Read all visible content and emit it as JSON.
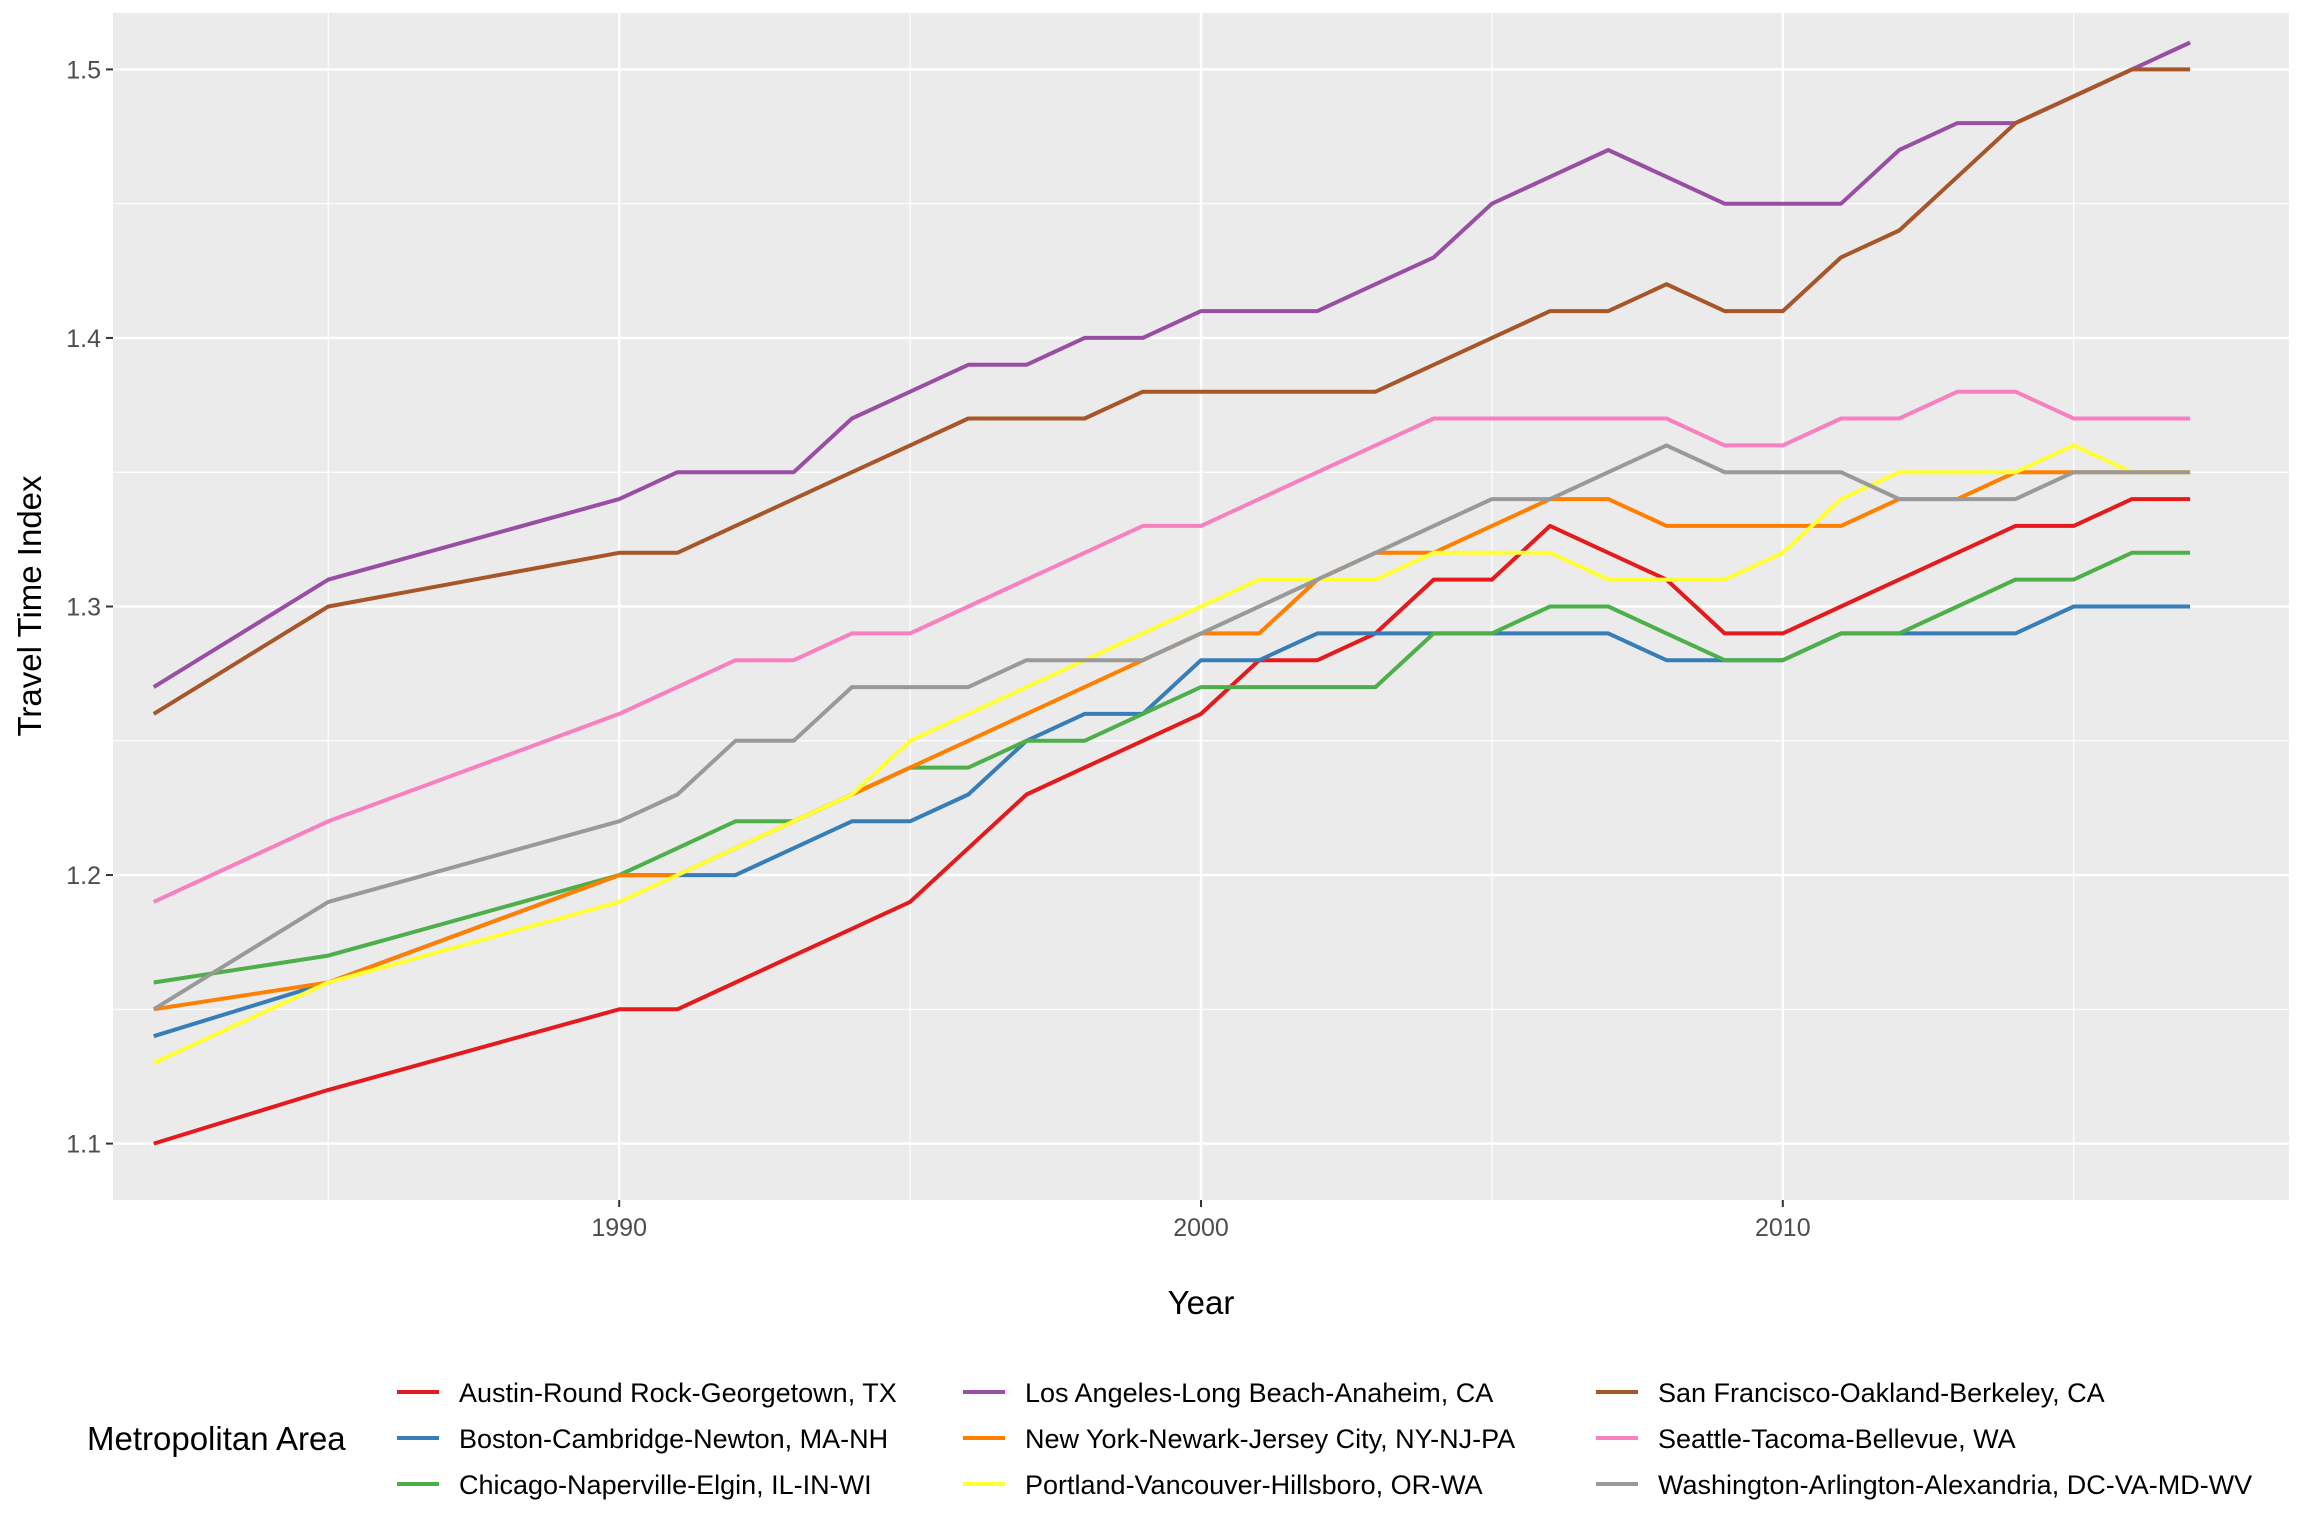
{
  "chart_data": {
    "type": "line",
    "xlabel": "Year",
    "ylabel": "Travel Time Index",
    "xlim": [
      1981.3,
      2018.7
    ],
    "ylim": [
      1.079,
      1.521
    ],
    "x_ticks": [
      1990,
      2000,
      2010
    ],
    "y_ticks": [
      1.1,
      1.2,
      1.3,
      1.4,
      1.5
    ],
    "y_tick_labels": [
      "1.1",
      "1.2",
      "1.3",
      "1.4",
      "1.5"
    ],
    "grid": true,
    "legend": {
      "title": "Metropolitan Area",
      "position": "bottom"
    },
    "x": [
      1982,
      1985,
      1990,
      1991,
      1992,
      1993,
      1994,
      1995,
      1996,
      1997,
      1998,
      1999,
      2000,
      2001,
      2002,
      2003,
      2004,
      2005,
      2006,
      2007,
      2008,
      2009,
      2010,
      2011,
      2012,
      2013,
      2014,
      2015,
      2016,
      2017
    ],
    "series": [
      {
        "name": "Austin-Round Rock-Georgetown, TX",
        "color": "#E41A1C",
        "values": [
          1.1,
          1.12,
          1.15,
          1.15,
          1.16,
          1.17,
          1.18,
          1.19,
          1.21,
          1.23,
          1.24,
          1.25,
          1.26,
          1.28,
          1.28,
          1.29,
          1.31,
          1.31,
          1.33,
          1.32,
          1.31,
          1.29,
          1.29,
          1.3,
          1.31,
          1.32,
          1.33,
          1.33,
          1.34,
          1.34
        ]
      },
      {
        "name": "Boston-Cambridge-Newton, MA-NH",
        "color": "#377EB8",
        "values": [
          1.14,
          1.16,
          1.2,
          1.2,
          1.2,
          1.21,
          1.22,
          1.22,
          1.23,
          1.25,
          1.26,
          1.26,
          1.28,
          1.28,
          1.29,
          1.29,
          1.29,
          1.29,
          1.29,
          1.29,
          1.28,
          1.28,
          1.28,
          1.29,
          1.29,
          1.29,
          1.29,
          1.3,
          1.3,
          1.3
        ]
      },
      {
        "name": "Chicago-Naperville-Elgin, IL-IN-WI",
        "color": "#4DAF4A",
        "values": [
          1.16,
          1.17,
          1.2,
          1.21,
          1.22,
          1.22,
          1.23,
          1.24,
          1.24,
          1.25,
          1.25,
          1.26,
          1.27,
          1.27,
          1.27,
          1.27,
          1.29,
          1.29,
          1.3,
          1.3,
          1.29,
          1.28,
          1.28,
          1.29,
          1.29,
          1.3,
          1.31,
          1.31,
          1.32,
          1.32
        ]
      },
      {
        "name": "Los Angeles-Long Beach-Anaheim, CA",
        "color": "#984EA3",
        "values": [
          1.27,
          1.31,
          1.34,
          1.35,
          1.35,
          1.35,
          1.37,
          1.38,
          1.39,
          1.39,
          1.4,
          1.4,
          1.41,
          1.41,
          1.41,
          1.42,
          1.43,
          1.45,
          1.46,
          1.47,
          1.46,
          1.45,
          1.45,
          1.45,
          1.47,
          1.48,
          1.48,
          1.49,
          1.5,
          1.51
        ]
      },
      {
        "name": "New York-Newark-Jersey City, NY-NJ-PA",
        "color": "#FF7F00",
        "values": [
          1.15,
          1.16,
          1.2,
          1.2,
          1.21,
          1.22,
          1.23,
          1.24,
          1.25,
          1.26,
          1.27,
          1.28,
          1.29,
          1.29,
          1.31,
          1.32,
          1.32,
          1.33,
          1.34,
          1.34,
          1.33,
          1.33,
          1.33,
          1.33,
          1.34,
          1.34,
          1.35,
          1.35,
          1.35,
          1.35
        ]
      },
      {
        "name": "Portland-Vancouver-Hillsboro, OR-WA",
        "color": "#FFFF33",
        "values": [
          1.13,
          1.16,
          1.19,
          1.2,
          1.21,
          1.22,
          1.23,
          1.25,
          1.26,
          1.27,
          1.28,
          1.29,
          1.3,
          1.31,
          1.31,
          1.31,
          1.32,
          1.32,
          1.32,
          1.31,
          1.31,
          1.31,
          1.32,
          1.34,
          1.35,
          1.35,
          1.35,
          1.36,
          1.35,
          1.35
        ]
      },
      {
        "name": "San Francisco-Oakland-Berkeley, CA",
        "color": "#A65628",
        "values": [
          1.26,
          1.3,
          1.32,
          1.32,
          1.33,
          1.34,
          1.35,
          1.36,
          1.37,
          1.37,
          1.37,
          1.38,
          1.38,
          1.38,
          1.38,
          1.38,
          1.39,
          1.4,
          1.41,
          1.41,
          1.42,
          1.41,
          1.41,
          1.43,
          1.44,
          1.46,
          1.48,
          1.49,
          1.5,
          1.5
        ]
      },
      {
        "name": "Seattle-Tacoma-Bellevue, WA",
        "color": "#F781BF",
        "values": [
          1.19,
          1.22,
          1.26,
          1.27,
          1.28,
          1.28,
          1.29,
          1.29,
          1.3,
          1.31,
          1.32,
          1.33,
          1.33,
          1.34,
          1.35,
          1.36,
          1.37,
          1.37,
          1.37,
          1.37,
          1.37,
          1.36,
          1.36,
          1.37,
          1.37,
          1.38,
          1.38,
          1.37,
          1.37,
          1.37
        ]
      },
      {
        "name": "Washington-Arlington-Alexandria, DC-VA-MD-WV",
        "color": "#999999",
        "values": [
          1.15,
          1.19,
          1.22,
          1.23,
          1.25,
          1.25,
          1.27,
          1.27,
          1.27,
          1.28,
          1.28,
          1.28,
          1.29,
          1.3,
          1.31,
          1.32,
          1.33,
          1.34,
          1.34,
          1.35,
          1.36,
          1.35,
          1.35,
          1.35,
          1.34,
          1.34,
          1.34,
          1.35,
          1.35,
          1.35
        ]
      }
    ]
  }
}
